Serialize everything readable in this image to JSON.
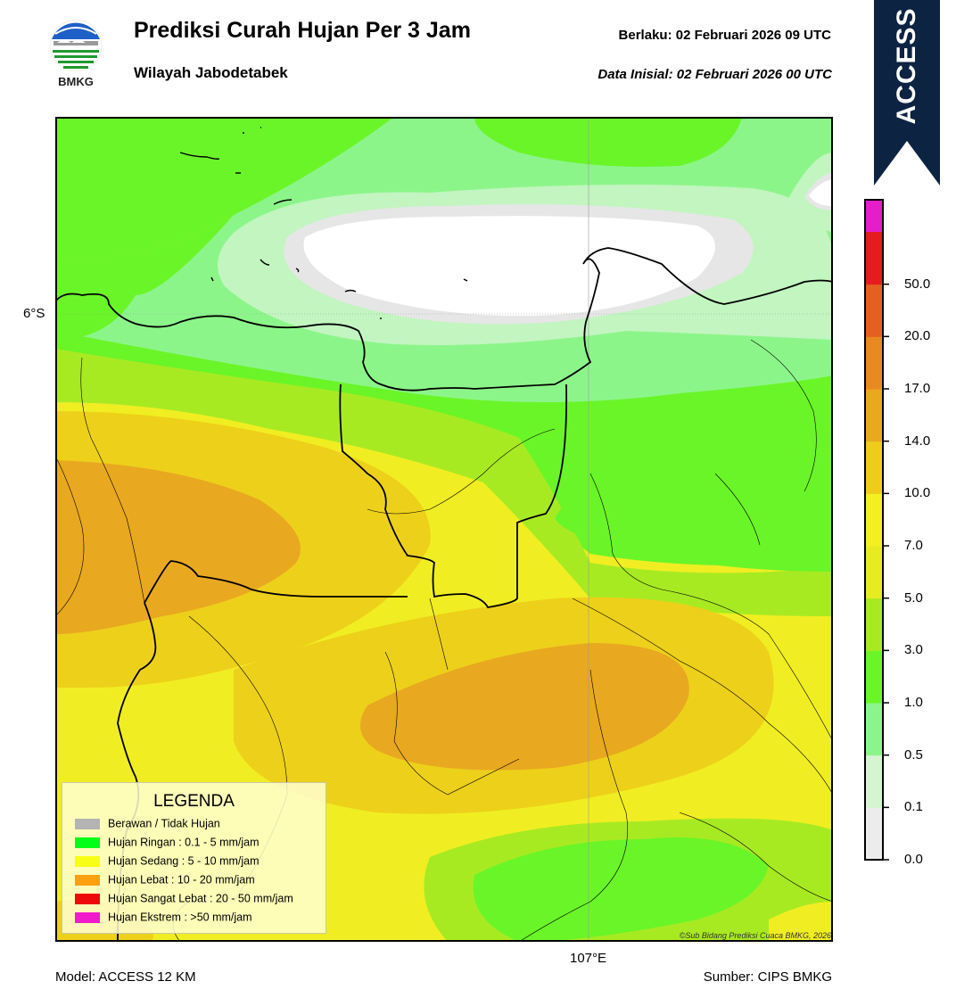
{
  "header": {
    "title": "Prediksi Curah Hujan Per 3 Jam",
    "subtitle": "Wilayah Jabodetabek",
    "valid_label": "Berlaku:  02 Februari 2026 09 UTC",
    "init_label": "Data Inisial:  02 Februari 2026 00 UTC"
  },
  "logo": {
    "text": "BMKG"
  },
  "ribbon": {
    "text": "ACCESS",
    "color": "#0d2342"
  },
  "map": {
    "lat_label": "6°S",
    "lon_label": "107°E",
    "copyright": "©Sub Bidang Prediksi Cuaca BMKG, 2026"
  },
  "legend": {
    "title": "LEGENDA",
    "items": [
      {
        "label": "Berawan / Tidak Hujan",
        "color": "#b4b4b4"
      },
      {
        "label": "Hujan Ringan : 0.1 - 5 mm/jam",
        "color": "#00ff16"
      },
      {
        "label": "Hujan Sedang : 5 - 10 mm/jam",
        "color": "#f8ff14"
      },
      {
        "label": "Hujan Lebat : 10 - 20 mm/jam",
        "color": "#ffa010"
      },
      {
        "label": "Hujan Sangat Lebat : 20 - 50 mm/jam",
        "color": "#ee0a0a"
      },
      {
        "label": "Hujan Ekstrem : >50 mm/jam",
        "color": "#f01ccc"
      }
    ]
  },
  "colorbar": {
    "colors": [
      "#ececec",
      "#d4f5d0",
      "#8cf58a",
      "#6af528",
      "#a8ea22",
      "#e6ec20",
      "#f4f020",
      "#f0cc18",
      "#eaa81e",
      "#e88a22",
      "#e46020",
      "#e61c1c",
      "#e41ec8"
    ],
    "labels": [
      "0.0",
      "0.1",
      "0.5",
      "1.0",
      "3.0",
      "5.0",
      "7.0",
      "10.0",
      "14.0",
      "17.0",
      "20.0",
      "50.0"
    ]
  },
  "footer": {
    "model": "Model: ACCESS 12 KM",
    "source": "Sumber: CIPS BMKG"
  }
}
